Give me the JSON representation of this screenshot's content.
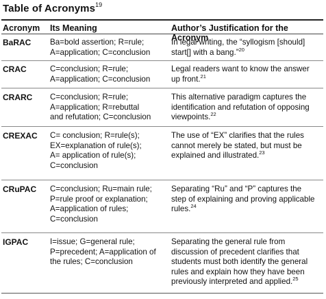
{
  "table": {
    "title": "Table of Acronyms",
    "title_footnote": "19",
    "headers": [
      "Acronym",
      "Its Meaning",
      "Author’s Justification for the Acronym"
    ],
    "rows": [
      {
        "acronym": "BaRAC",
        "meaning": [
          "Ba=bold assertion; R=rule;",
          "A=application; C=conclusion"
        ],
        "justification": [
          "In legal writing, the “syllogism [should]",
          "start[] with a bang.”"
        ],
        "footnote": "20"
      },
      {
        "acronym": "CRAC",
        "meaning": [
          "C=conclusion; R=rule;",
          "A=application; C=conclusion"
        ],
        "justification": [
          "Legal readers want to know the answer",
          "up front."
        ],
        "footnote": "21"
      },
      {
        "acronym": "CRARC",
        "meaning": [
          "C=conclusion; R=rule;",
          "A=application; R=rebuttal",
          "and refutation; C=conclusion"
        ],
        "justification": [
          "This alternative paradigm captures the",
          "identification and refutation of opposing",
          "viewpoints."
        ],
        "footnote": "22"
      },
      {
        "acronym": "CREXAC",
        "meaning": [
          "C= conclusion; R=rule(s);",
          "EX=explanation of rule(s);",
          "A= application of rule(s);",
          "C=conclusion"
        ],
        "justification": [
          "The use of “EX” clarifies that the rules",
          "cannot merely be stated, but must be",
          "explained and illustrated."
        ],
        "footnote": "23"
      },
      {
        "acronym": "CRuPAC",
        "meaning": [
          "C=conclusion; Ru=main rule;",
          "P=rule proof or explanation;",
          "A=application of rules;",
          "C=conclusion"
        ],
        "justification": [
          "Separating “Ru” and “P” captures the",
          "step of explaining and proving applicable",
          "rules."
        ],
        "footnote": "24"
      },
      {
        "acronym": "IGPAC",
        "meaning": [
          "I=issue; G=general rule;",
          "P=precedent; A=application of",
          "the rules; C=conclusion"
        ],
        "justification": [
          "Separating the general rule from",
          "discussion of precedent clarifies that",
          "students must both identify the general",
          "rules and explain how they have been",
          "previously interpreted and applied."
        ],
        "footnote": "25"
      }
    ]
  }
}
